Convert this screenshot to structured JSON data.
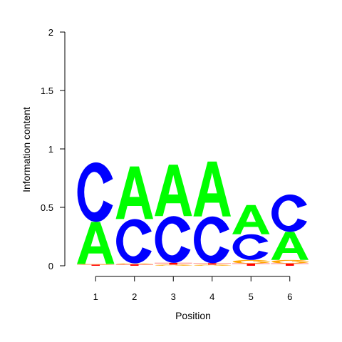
{
  "chart_data": {
    "type": "sequence-logo",
    "xlabel": "Position",
    "ylabel": "Information content",
    "ylim": [
      0,
      2
    ],
    "yticks": [
      "0",
      "0.5",
      "1",
      "1.5",
      "2"
    ],
    "ytick_values": [
      0,
      0.5,
      1,
      1.5,
      2
    ],
    "positions": [
      "1",
      "2",
      "3",
      "4",
      "5",
      "6"
    ],
    "colors": {
      "A": "#00ff00",
      "C": "#0000ff",
      "G": "#ffa500",
      "T": "#ff0000"
    },
    "stacks": [
      [
        {
          "base": "T",
          "height": 0.01
        },
        {
          "base": "G",
          "height": 0.005
        },
        {
          "base": "A",
          "height": 0.36
        },
        {
          "base": "C",
          "height": 0.51
        }
      ],
      [
        {
          "base": "T",
          "height": 0.012
        },
        {
          "base": "G",
          "height": 0.008
        },
        {
          "base": "C",
          "height": 0.38
        },
        {
          "base": "A",
          "height": 0.45
        }
      ],
      [
        {
          "base": "G",
          "height": 0.01
        },
        {
          "base": "T",
          "height": 0.015
        },
        {
          "base": "C",
          "height": 0.4
        },
        {
          "base": "A",
          "height": 0.44
        }
      ],
      [
        {
          "base": "G",
          "height": 0.01
        },
        {
          "base": "T",
          "height": 0.012
        },
        {
          "base": "C",
          "height": 0.4
        },
        {
          "base": "A",
          "height": 0.47
        }
      ],
      [
        {
          "base": "T",
          "height": 0.02
        },
        {
          "base": "G",
          "height": 0.03
        },
        {
          "base": "C",
          "height": 0.22
        },
        {
          "base": "A",
          "height": 0.25
        }
      ],
      [
        {
          "base": "T",
          "height": 0.02
        },
        {
          "base": "G",
          "height": 0.03
        },
        {
          "base": "A",
          "height": 0.24
        },
        {
          "base": "C",
          "height": 0.32
        }
      ]
    ]
  }
}
